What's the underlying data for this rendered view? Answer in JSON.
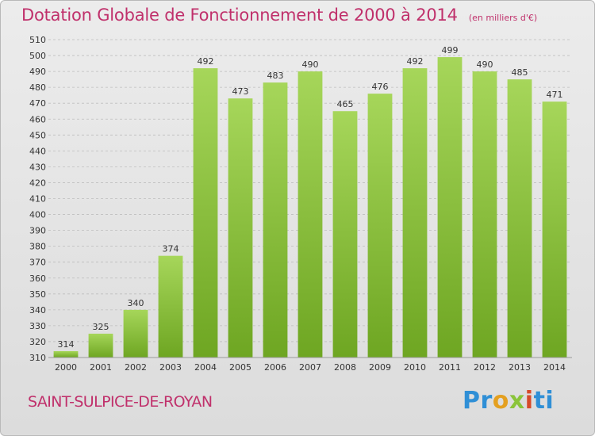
{
  "title": "Dotation Globale de Fonctionnement de 2000 à 2014",
  "unit_note": "(en milliers d'€)",
  "commune": "SAINT-SULPICE-DE-ROYAN",
  "logo": {
    "p1": "Pr",
    "p2": "o",
    "p3": "x",
    "p4": "i",
    "p5": "ti"
  },
  "colors": {
    "title": "#c0306b",
    "bar_top": "#a6d65a",
    "bar_bottom": "#6ea622",
    "grid": "#bdbdbd"
  },
  "chart_data": {
    "type": "bar",
    "categories": [
      "2000",
      "2001",
      "2002",
      "2003",
      "2004",
      "2005",
      "2006",
      "2007",
      "2008",
      "2009",
      "2010",
      "2011",
      "2012",
      "2013",
      "2014"
    ],
    "values": [
      314,
      325,
      340,
      374,
      492,
      473,
      483,
      490,
      465,
      476,
      492,
      499,
      490,
      485,
      471
    ],
    "ylim": [
      310,
      510
    ],
    "ytick_step": 10,
    "grid": true,
    "legend": "none"
  }
}
